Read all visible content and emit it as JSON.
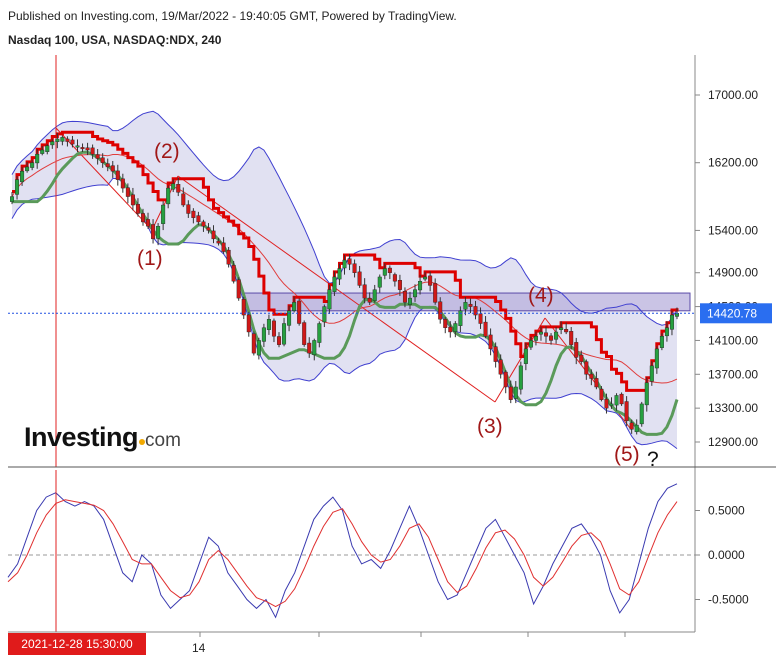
{
  "header": {
    "published": "Published on Investing.com, 19/Mar/2022 - 19:40:05 GMT, Powered by TradingView.",
    "symbol": "Nasdaq 100, USA, NASDAQ:NDX, 240"
  },
  "logo": {
    "word": "Investing",
    "suffix": "com"
  },
  "date_tag": "2021-12-28 15:30:00",
  "x_tick": "14",
  "chart_data": [
    {
      "type": "candlestick",
      "panel": "price",
      "ylim": [
        12600,
        17800
      ],
      "y_ticks": [
        {
          "value": 17000,
          "label": "17000.00"
        },
        {
          "value": 16200,
          "label": "16200.00"
        },
        {
          "value": 15400,
          "label": "15400.00"
        },
        {
          "value": 14900,
          "label": "14900.00"
        },
        {
          "value": 14500,
          "label": "14500.00"
        },
        {
          "value": 14100,
          "label": "14100.00"
        },
        {
          "value": 13700,
          "label": "13700.00"
        },
        {
          "value": 13300,
          "label": "13300.00"
        },
        {
          "value": 12900,
          "label": "12900.00"
        }
      ],
      "last_price": {
        "value": 14420.78,
        "label": "14420.78"
      },
      "zone": [
        14450,
        14660
      ],
      "candles_close": [
        15800,
        16000,
        16100,
        16150,
        16200,
        16300,
        16350,
        16400,
        16450,
        16480,
        16500,
        16450,
        16420,
        16400,
        16380,
        16350,
        16300,
        16250,
        16200,
        16150,
        16100,
        16000,
        15900,
        15800,
        15700,
        15600,
        15500,
        15450,
        15300,
        15450,
        15700,
        15900,
        15950,
        15850,
        15700,
        15600,
        15550,
        15500,
        15450,
        15400,
        15300,
        15250,
        15150,
        15000,
        14800,
        14600,
        14400,
        14200,
        13950,
        14100,
        14250,
        14350,
        14150,
        14050,
        14300,
        14450,
        14550,
        14300,
        14050,
        13950,
        14100,
        14300,
        14500,
        14700,
        14850,
        14950,
        15050,
        15000,
        14900,
        14750,
        14600,
        14550,
        14700,
        14850,
        14950,
        14900,
        14800,
        14700,
        14550,
        14600,
        14700,
        14800,
        14850,
        14750,
        14550,
        14350,
        14250,
        14200,
        14300,
        14450,
        14550,
        14500,
        14400,
        14300,
        14150,
        14000,
        13850,
        13700,
        13550,
        13400,
        13550,
        13800,
        14000,
        14100,
        14150,
        14200,
        14150,
        14100,
        14200,
        14250,
        14200,
        14050,
        13900,
        13850,
        13700,
        13650,
        13550,
        13400,
        13300,
        13350,
        13450,
        13350,
        13150,
        13050,
        13100,
        13350,
        13600,
        13800,
        14000,
        14150,
        14250,
        14400,
        14420.78
      ],
      "xlabel": "",
      "ylabel": ""
    },
    {
      "type": "line",
      "panel": "oscillator",
      "ylim": [
        -0.85,
        0.85
      ],
      "y_ticks": [
        {
          "value": 0.5,
          "label": "0.5000"
        },
        {
          "value": 0.0,
          "label": "0.0000"
        },
        {
          "value": -0.5,
          "label": "-0.5000"
        }
      ],
      "series": [
        {
          "values": [
            -0.25,
            -0.1,
            0.2,
            0.5,
            0.65,
            0.7,
            0.6,
            0.55,
            0.6,
            0.55,
            0.4,
            0.1,
            -0.2,
            -0.3,
            0.0,
            -0.1,
            -0.45,
            -0.6,
            -0.5,
            -0.4,
            -0.1,
            0.2,
            0.1,
            -0.2,
            -0.35,
            -0.5,
            -0.6,
            -0.5,
            -0.7,
            -0.4,
            -0.2,
            0.1,
            0.4,
            0.55,
            0.65,
            0.5,
            0.1,
            -0.1,
            -0.05,
            -0.15,
            0.05,
            0.3,
            0.55,
            0.3,
            0.0,
            -0.3,
            -0.5,
            -0.45,
            -0.2,
            0.05,
            0.3,
            0.4,
            0.2,
            0.0,
            -0.2,
            -0.55,
            -0.35,
            -0.1,
            0.1,
            0.3,
            0.35,
            0.2,
            0.0,
            -0.4,
            -0.65,
            -0.5,
            -0.1,
            0.3,
            0.6,
            0.75,
            0.8
          ],
          "color": "#3a3ab0"
        },
        {
          "values": [
            -0.3,
            -0.2,
            0.0,
            0.25,
            0.45,
            0.58,
            0.62,
            0.6,
            0.58,
            0.56,
            0.5,
            0.35,
            0.15,
            -0.05,
            -0.1,
            -0.1,
            -0.25,
            -0.4,
            -0.48,
            -0.45,
            -0.3,
            -0.05,
            0.05,
            -0.05,
            -0.2,
            -0.35,
            -0.48,
            -0.52,
            -0.58,
            -0.52,
            -0.38,
            -0.15,
            0.1,
            0.32,
            0.48,
            0.52,
            0.35,
            0.15,
            0.0,
            -0.08,
            -0.05,
            0.1,
            0.3,
            0.35,
            0.2,
            -0.05,
            -0.3,
            -0.42,
            -0.35,
            -0.15,
            0.08,
            0.25,
            0.28,
            0.18,
            0.0,
            -0.25,
            -0.35,
            -0.25,
            -0.08,
            0.1,
            0.22,
            0.25,
            0.15,
            -0.1,
            -0.38,
            -0.45,
            -0.3,
            -0.02,
            0.25,
            0.45,
            0.6
          ],
          "color": "#e03030"
        }
      ]
    }
  ]
}
